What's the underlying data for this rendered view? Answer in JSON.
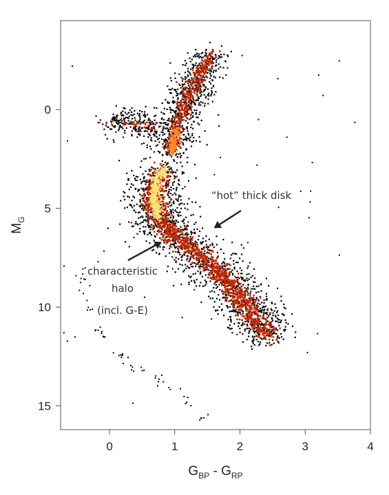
{
  "chart_data": {
    "type": "scatter",
    "style": "density-colored scatter (Hertzsprung-Russell diagram)",
    "xlabel": {
      "main": "G",
      "sub1": "BP",
      "mid": " - G",
      "sub2": "RP"
    },
    "ylabel": {
      "main": "M",
      "sub": "G"
    },
    "xlim": [
      -0.75,
      4.0
    ],
    "ylim": [
      16.2,
      -4.5
    ],
    "y_inverted": true,
    "xticks": [
      0,
      1,
      2,
      3,
      4
    ],
    "yticks": [
      0,
      5,
      10,
      15
    ],
    "grid": false,
    "legend": "none",
    "colors": {
      "density_low": "#000000",
      "density_mid": "#c42800",
      "density_high": "#ffe07a",
      "arrow": "#222222"
    },
    "sequences": [
      {
        "part": "giant-branch",
        "points": [
          [
            1.55,
            -2.8
          ],
          [
            1.35,
            -1.5
          ],
          [
            1.15,
            -0.3
          ],
          [
            1.05,
            0.6
          ],
          [
            1.0,
            1.5
          ],
          [
            0.95,
            2.2
          ]
        ]
      },
      {
        "part": "turnoff-and-main-sequence",
        "points": [
          [
            0.85,
            3.0
          ],
          [
            0.72,
            3.6
          ],
          [
            0.68,
            4.5
          ],
          [
            0.75,
            5.5
          ],
          [
            0.95,
            6.3
          ],
          [
            1.25,
            7.0
          ],
          [
            1.55,
            7.8
          ],
          [
            1.85,
            8.8
          ],
          [
            2.05,
            9.8
          ],
          [
            2.2,
            10.5
          ],
          [
            2.45,
            11.5
          ]
        ]
      },
      {
        "part": "horizontal-branch",
        "points": [
          [
            0.0,
            0.7
          ],
          [
            0.25,
            0.6
          ],
          [
            0.5,
            0.8
          ],
          [
            0.75,
            1.0
          ]
        ]
      },
      {
        "part": "white-dwarf-sequence",
        "points": [
          [
            -0.45,
            8.0
          ],
          [
            -0.3,
            10.5
          ],
          [
            -0.1,
            11.5
          ],
          [
            0.2,
            12.5
          ],
          [
            0.5,
            13.3
          ],
          [
            0.9,
            14.0
          ],
          [
            1.2,
            14.8
          ],
          [
            1.5,
            15.8
          ]
        ]
      }
    ],
    "annotations": [
      {
        "text": "“hot” thick disk",
        "arrow_to": [
          1.6,
          6.0
        ]
      },
      {
        "lines": [
          "characteristic",
          "halo",
          "(incl. G-E)"
        ],
        "arrow_to": [
          0.8,
          6.7
        ]
      }
    ]
  }
}
